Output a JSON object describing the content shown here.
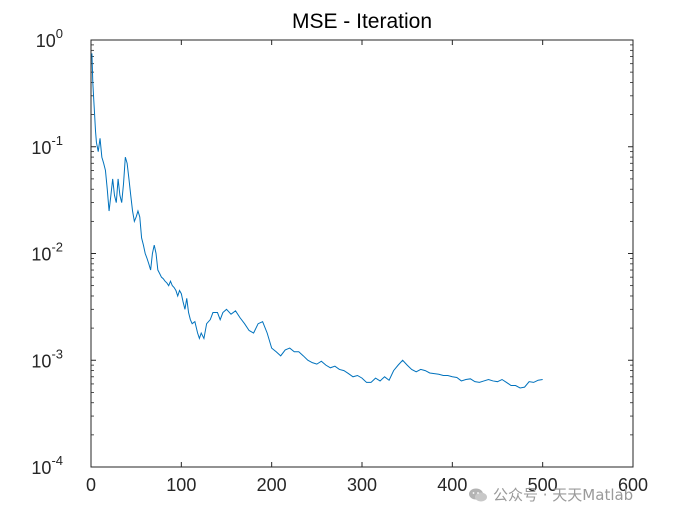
{
  "chart_data": {
    "type": "line",
    "title": "MSE - Iteration",
    "xlabel": "",
    "ylabel": "",
    "xlim": [
      0,
      600
    ],
    "ylim": [
      0.0001,
      1
    ],
    "yscale": "log",
    "x_ticks": [
      "0",
      "100",
      "200",
      "300",
      "400",
      "500",
      "600"
    ],
    "y_ticks": [
      {
        "base": "10",
        "exp": "0"
      },
      {
        "base": "10",
        "exp": "-1"
      },
      {
        "base": "10",
        "exp": "-2"
      },
      {
        "base": "10",
        "exp": "-3"
      },
      {
        "base": "10",
        "exp": "-4"
      }
    ],
    "grid": false,
    "series": [
      {
        "name": "MSE",
        "color": "#0072BD",
        "points": [
          [
            1,
            0.75
          ],
          [
            2,
            0.4
          ],
          [
            3,
            0.28
          ],
          [
            4,
            0.2
          ],
          [
            5,
            0.14
          ],
          [
            6,
            0.11
          ],
          [
            8,
            0.09
          ],
          [
            10,
            0.12
          ],
          [
            12,
            0.08
          ],
          [
            14,
            0.07
          ],
          [
            16,
            0.06
          ],
          [
            18,
            0.04
          ],
          [
            20,
            0.025
          ],
          [
            22,
            0.035
          ],
          [
            24,
            0.05
          ],
          [
            26,
            0.035
          ],
          [
            28,
            0.03
          ],
          [
            30,
            0.05
          ],
          [
            32,
            0.035
          ],
          [
            34,
            0.03
          ],
          [
            36,
            0.045
          ],
          [
            38,
            0.08
          ],
          [
            40,
            0.07
          ],
          [
            42,
            0.05
          ],
          [
            44,
            0.035
          ],
          [
            46,
            0.025
          ],
          [
            48,
            0.02
          ],
          [
            50,
            0.022
          ],
          [
            52,
            0.025
          ],
          [
            54,
            0.022
          ],
          [
            56,
            0.014
          ],
          [
            58,
            0.012
          ],
          [
            60,
            0.01
          ],
          [
            62,
            0.009
          ],
          [
            64,
            0.008
          ],
          [
            66,
            0.007
          ],
          [
            68,
            0.01
          ],
          [
            70,
            0.012
          ],
          [
            72,
            0.01
          ],
          [
            74,
            0.007
          ],
          [
            76,
            0.0065
          ],
          [
            78,
            0.006
          ],
          [
            80,
            0.0058
          ],
          [
            82,
            0.0055
          ],
          [
            84,
            0.0053
          ],
          [
            86,
            0.005
          ],
          [
            88,
            0.0055
          ],
          [
            90,
            0.005
          ],
          [
            92,
            0.0048
          ],
          [
            94,
            0.0045
          ],
          [
            96,
            0.004
          ],
          [
            98,
            0.0045
          ],
          [
            100,
            0.0042
          ],
          [
            102,
            0.0035
          ],
          [
            104,
            0.003
          ],
          [
            106,
            0.0038
          ],
          [
            108,
            0.0028
          ],
          [
            110,
            0.0024
          ],
          [
            112,
            0.0022
          ],
          [
            115,
            0.0023
          ],
          [
            118,
            0.0018
          ],
          [
            120,
            0.0016
          ],
          [
            122,
            0.0018
          ],
          [
            125,
            0.0016
          ],
          [
            128,
            0.0022
          ],
          [
            132,
            0.0024
          ],
          [
            135,
            0.0028
          ],
          [
            140,
            0.0028
          ],
          [
            143,
            0.0024
          ],
          [
            146,
            0.0028
          ],
          [
            150,
            0.003
          ],
          [
            155,
            0.0027
          ],
          [
            160,
            0.0029
          ],
          [
            165,
            0.0025
          ],
          [
            170,
            0.0022
          ],
          [
            175,
            0.0019
          ],
          [
            180,
            0.0018
          ],
          [
            185,
            0.0022
          ],
          [
            190,
            0.0023
          ],
          [
            195,
            0.0018
          ],
          [
            200,
            0.0013
          ],
          [
            205,
            0.0012
          ],
          [
            210,
            0.0011
          ],
          [
            215,
            0.00125
          ],
          [
            220,
            0.0013
          ],
          [
            225,
            0.0012
          ],
          [
            230,
            0.0012
          ],
          [
            235,
            0.0011
          ],
          [
            240,
            0.001
          ],
          [
            245,
            0.00095
          ],
          [
            250,
            0.00092
          ],
          [
            255,
            0.00098
          ],
          [
            260,
            0.0009
          ],
          [
            265,
            0.00085
          ],
          [
            270,
            0.00088
          ],
          [
            275,
            0.00082
          ],
          [
            280,
            0.0008
          ],
          [
            285,
            0.00075
          ],
          [
            290,
            0.0007
          ],
          [
            295,
            0.00072
          ],
          [
            300,
            0.00068
          ],
          [
            305,
            0.00062
          ],
          [
            310,
            0.00062
          ],
          [
            315,
            0.00068
          ],
          [
            320,
            0.00064
          ],
          [
            325,
            0.0007
          ],
          [
            330,
            0.00065
          ],
          [
            335,
            0.0008
          ],
          [
            340,
            0.0009
          ],
          [
            345,
            0.001
          ],
          [
            350,
            0.0009
          ],
          [
            355,
            0.00082
          ],
          [
            360,
            0.00078
          ],
          [
            365,
            0.00082
          ],
          [
            370,
            0.0008
          ],
          [
            375,
            0.00076
          ],
          [
            380,
            0.00075
          ],
          [
            385,
            0.00074
          ],
          [
            390,
            0.00072
          ],
          [
            395,
            0.00072
          ],
          [
            400,
            0.0007
          ],
          [
            405,
            0.00069
          ],
          [
            410,
            0.00064
          ],
          [
            415,
            0.00066
          ],
          [
            420,
            0.00067
          ],
          [
            425,
            0.00063
          ],
          [
            430,
            0.00062
          ],
          [
            435,
            0.00064
          ],
          [
            440,
            0.00066
          ],
          [
            445,
            0.00064
          ],
          [
            450,
            0.00063
          ],
          [
            455,
            0.00066
          ],
          [
            460,
            0.00062
          ],
          [
            465,
            0.00058
          ],
          [
            470,
            0.00058
          ],
          [
            475,
            0.00055
          ],
          [
            480,
            0.00056
          ],
          [
            485,
            0.00063
          ],
          [
            490,
            0.00062
          ],
          [
            495,
            0.00065
          ],
          [
            500,
            0.00066
          ]
        ]
      }
    ]
  },
  "watermark": {
    "text": "公众号 · 天天Matlab"
  }
}
